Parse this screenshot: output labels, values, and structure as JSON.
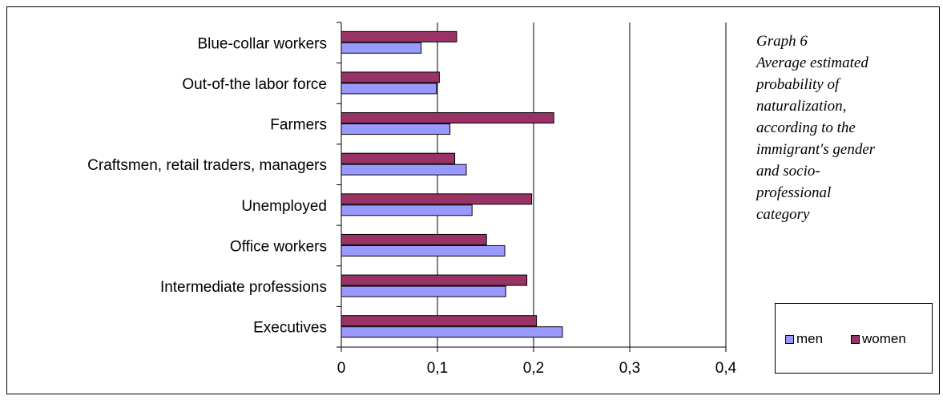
{
  "chart_data": {
    "type": "bar",
    "orientation": "horizontal",
    "categories": [
      "Blue-collar workers",
      "Out-of-the labor force",
      "Farmers",
      "Craftsmen, retail traders, managers",
      "Unemployed",
      "Office workers",
      "Intermediate professions",
      "Executives"
    ],
    "series": [
      {
        "name": "men",
        "color": "#9999ff",
        "values": [
          0.083,
          0.099,
          0.113,
          0.13,
          0.136,
          0.17,
          0.171,
          0.23
        ]
      },
      {
        "name": "women",
        "color": "#993366",
        "values": [
          0.12,
          0.102,
          0.221,
          0.118,
          0.198,
          0.151,
          0.193,
          0.203
        ]
      }
    ],
    "xlim": [
      0,
      0.4
    ],
    "x_ticks": [
      "0",
      "0,1",
      "0,2",
      "0,3",
      "0,4"
    ],
    "x_tick_values": [
      0,
      0.1,
      0.2,
      0.3,
      0.4
    ],
    "grid": "vertical",
    "legend_position": "bottom-right",
    "title_lines": [
      "Graph 6",
      "Average estimated",
      "probability of",
      "naturalization,",
      "according to the",
      "immigrant's gender",
      "and socio-",
      "professional",
      "category"
    ]
  }
}
